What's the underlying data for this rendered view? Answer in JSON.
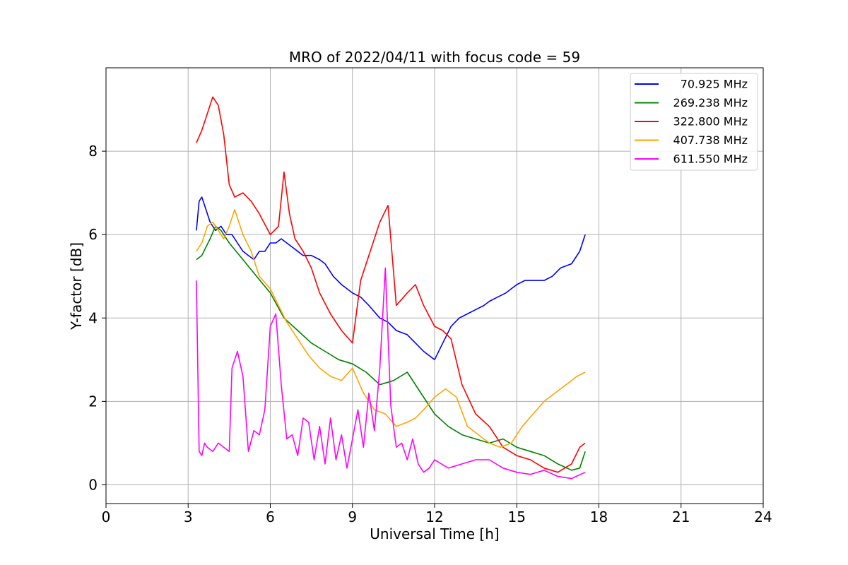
{
  "chart_data": {
    "type": "line",
    "title": "MRO of 2022/04/11 with focus code = 59",
    "xlabel": "Universal Time [h]",
    "ylabel": "Y-factor [dB]",
    "xlim": [
      0,
      24
    ],
    "ylim": [
      -0.45,
      10.0
    ],
    "xticks": [
      0,
      3,
      6,
      9,
      12,
      15,
      18,
      21,
      24
    ],
    "yticks": [
      0,
      2,
      4,
      6,
      8
    ],
    "grid": true,
    "legend_position": "top-right",
    "series": [
      {
        "name": "70.925 MHz",
        "color": "#0000ff",
        "x": [
          3.3,
          3.4,
          3.5,
          3.6,
          3.8,
          4.0,
          4.2,
          4.4,
          4.6,
          4.8,
          5.0,
          5.2,
          5.4,
          5.6,
          5.8,
          6.0,
          6.2,
          6.4,
          6.6,
          6.8,
          7.0,
          7.2,
          7.5,
          7.8,
          8.0,
          8.3,
          8.6,
          9.0,
          9.3,
          9.6,
          10.0,
          10.3,
          10.6,
          11.0,
          11.3,
          11.6,
          12.0,
          12.3,
          12.6,
          12.9,
          13.2,
          13.5,
          13.8,
          14.0,
          14.3,
          14.6,
          15.0,
          15.3,
          15.6,
          16.0,
          16.3,
          16.6,
          17.0,
          17.3,
          17.5
        ],
        "y": [
          6.1,
          6.8,
          6.9,
          6.7,
          6.3,
          6.1,
          6.2,
          6.0,
          6.0,
          5.8,
          5.6,
          5.5,
          5.4,
          5.6,
          5.6,
          5.8,
          5.8,
          5.9,
          5.8,
          5.7,
          5.6,
          5.5,
          5.5,
          5.4,
          5.3,
          5.0,
          4.8,
          4.6,
          4.5,
          4.3,
          4.0,
          3.9,
          3.7,
          3.6,
          3.4,
          3.2,
          3.0,
          3.4,
          3.8,
          4.0,
          4.1,
          4.2,
          4.3,
          4.4,
          4.5,
          4.6,
          4.8,
          4.9,
          4.9,
          4.9,
          5.0,
          5.2,
          5.3,
          5.6,
          6.0
        ]
      },
      {
        "name": "269.238 MHz",
        "color": "#008000",
        "x": [
          3.3,
          3.5,
          3.8,
          4.0,
          4.2,
          4.5,
          5.0,
          5.5,
          6.0,
          6.5,
          7.0,
          7.5,
          8.0,
          8.5,
          9.0,
          9.5,
          10.0,
          10.5,
          11.0,
          11.5,
          12.0,
          12.5,
          13.0,
          13.5,
          14.0,
          14.5,
          15.0,
          15.5,
          16.0,
          16.5,
          17.0,
          17.3,
          17.5
        ],
        "y": [
          5.4,
          5.5,
          5.9,
          6.2,
          6.1,
          5.8,
          5.4,
          5.0,
          4.6,
          4.0,
          3.7,
          3.4,
          3.2,
          3.0,
          2.9,
          2.7,
          2.4,
          2.5,
          2.7,
          2.2,
          1.7,
          1.4,
          1.2,
          1.1,
          1.0,
          1.1,
          0.9,
          0.8,
          0.7,
          0.5,
          0.35,
          0.4,
          0.8
        ]
      },
      {
        "name": "322.800 MHz",
        "color": "#ff0000",
        "x": [
          3.3,
          3.5,
          3.7,
          3.9,
          4.1,
          4.3,
          4.5,
          4.7,
          5.0,
          5.3,
          5.6,
          6.0,
          6.3,
          6.5,
          6.7,
          6.9,
          7.2,
          7.5,
          7.8,
          8.2,
          8.6,
          9.0,
          9.3,
          9.6,
          10.0,
          10.3,
          10.6,
          11.0,
          11.3,
          11.6,
          12.0,
          12.3,
          12.6,
          13.0,
          13.5,
          14.0,
          14.5,
          15.0,
          15.5,
          16.0,
          16.5,
          17.0,
          17.3,
          17.5
        ],
        "y": [
          8.2,
          8.5,
          8.9,
          9.3,
          9.1,
          8.4,
          7.2,
          6.9,
          7.0,
          6.8,
          6.5,
          6.0,
          6.2,
          7.5,
          6.5,
          5.9,
          5.6,
          5.2,
          4.6,
          4.1,
          3.7,
          3.4,
          4.9,
          5.5,
          6.3,
          6.7,
          4.3,
          4.6,
          4.8,
          4.3,
          3.8,
          3.7,
          3.5,
          2.4,
          1.7,
          1.4,
          0.9,
          0.7,
          0.6,
          0.4,
          0.3,
          0.5,
          0.9,
          1.0
        ]
      },
      {
        "name": "407.738 MHz",
        "color": "#ffa500",
        "x": [
          3.3,
          3.5,
          3.7,
          3.9,
          4.1,
          4.3,
          4.5,
          4.7,
          5.0,
          5.3,
          5.6,
          6.0,
          6.3,
          6.6,
          7.0,
          7.4,
          7.8,
          8.2,
          8.6,
          9.0,
          9.4,
          9.8,
          10.2,
          10.6,
          11.0,
          11.3,
          11.6,
          12.0,
          12.4,
          12.8,
          13.2,
          13.6,
          14.0,
          14.4,
          14.8,
          15.2,
          15.6,
          16.0,
          16.4,
          16.8,
          17.2,
          17.5
        ],
        "y": [
          5.6,
          5.8,
          6.2,
          6.3,
          6.1,
          5.9,
          6.2,
          6.6,
          6.0,
          5.6,
          5.0,
          4.7,
          4.3,
          3.9,
          3.5,
          3.1,
          2.8,
          2.6,
          2.5,
          2.8,
          2.2,
          1.8,
          1.7,
          1.4,
          1.5,
          1.6,
          1.8,
          2.1,
          2.3,
          2.1,
          1.4,
          1.2,
          1.0,
          0.9,
          1.0,
          1.4,
          1.7,
          2.0,
          2.2,
          2.4,
          2.6,
          2.7
        ]
      },
      {
        "name": "611.550 MHz",
        "color": "#ff00ff",
        "x": [
          3.3,
          3.4,
          3.5,
          3.6,
          3.7,
          3.9,
          4.1,
          4.3,
          4.5,
          4.6,
          4.8,
          5.0,
          5.2,
          5.4,
          5.6,
          5.8,
          6.0,
          6.2,
          6.4,
          6.6,
          6.8,
          7.0,
          7.2,
          7.4,
          7.6,
          7.8,
          8.0,
          8.2,
          8.4,
          8.6,
          8.8,
          9.0,
          9.2,
          9.4,
          9.6,
          9.8,
          10.0,
          10.2,
          10.4,
          10.6,
          10.8,
          11.0,
          11.2,
          11.4,
          11.6,
          11.8,
          12.0,
          12.5,
          13.0,
          13.5,
          14.0,
          14.5,
          15.0,
          15.5,
          16.0,
          16.5,
          17.0,
          17.5
        ],
        "y": [
          4.9,
          0.8,
          0.7,
          1.0,
          0.9,
          0.8,
          1.0,
          0.9,
          0.8,
          2.8,
          3.2,
          2.6,
          0.8,
          1.3,
          1.2,
          1.8,
          3.8,
          4.1,
          2.4,
          1.1,
          1.2,
          0.7,
          1.6,
          1.5,
          0.6,
          1.4,
          0.5,
          1.6,
          0.6,
          1.2,
          0.4,
          1.1,
          1.8,
          0.9,
          2.2,
          1.3,
          2.8,
          5.2,
          1.9,
          0.9,
          1.0,
          0.6,
          1.1,
          0.5,
          0.3,
          0.4,
          0.6,
          0.4,
          0.5,
          0.6,
          0.6,
          0.4,
          0.3,
          0.25,
          0.35,
          0.2,
          0.15,
          0.3
        ]
      }
    ]
  }
}
